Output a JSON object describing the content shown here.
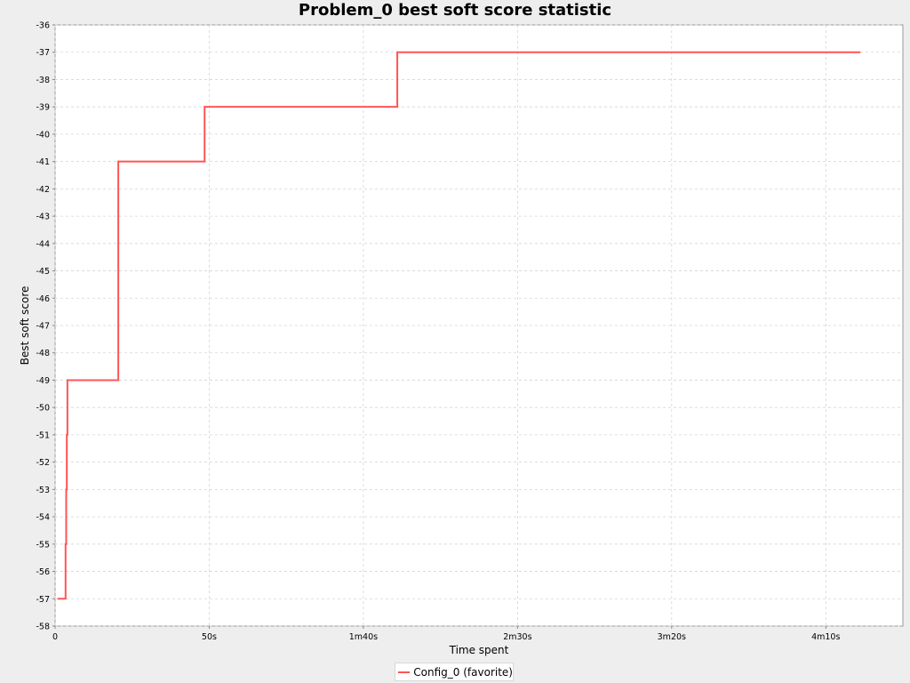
{
  "chart_data": {
    "type": "line",
    "title": "Problem_0 best soft score statistic",
    "xlabel": "Time spent",
    "ylabel": "Best soft score",
    "xlim": [
      0,
      275
    ],
    "ylim": [
      -58,
      -36
    ],
    "x_ticks": [
      {
        "value": 0,
        "label": "0"
      },
      {
        "value": 50,
        "label": "50s"
      },
      {
        "value": 100,
        "label": "1m40s"
      },
      {
        "value": 150,
        "label": "2m30s"
      },
      {
        "value": 200,
        "label": "3m20s"
      },
      {
        "value": 250,
        "label": "4m10s"
      }
    ],
    "y_ticks": [
      -36,
      -37,
      -38,
      -39,
      -40,
      -41,
      -42,
      -43,
      -44,
      -45,
      -46,
      -47,
      -48,
      -49,
      -50,
      -51,
      -52,
      -53,
      -54,
      -55,
      -56,
      -57,
      -58
    ],
    "grid": true,
    "legend_position": "bottom-center",
    "series": [
      {
        "name": "Config_0 (favorite)",
        "color": "#ff5555",
        "step": true,
        "x": [
          1,
          3.4,
          3.6,
          3.8,
          4.0,
          20.5,
          48.5,
          111,
          261
        ],
        "y": [
          -57,
          -55,
          -53,
          -51,
          -49,
          -41,
          -39,
          -37,
          -37
        ]
      }
    ]
  }
}
